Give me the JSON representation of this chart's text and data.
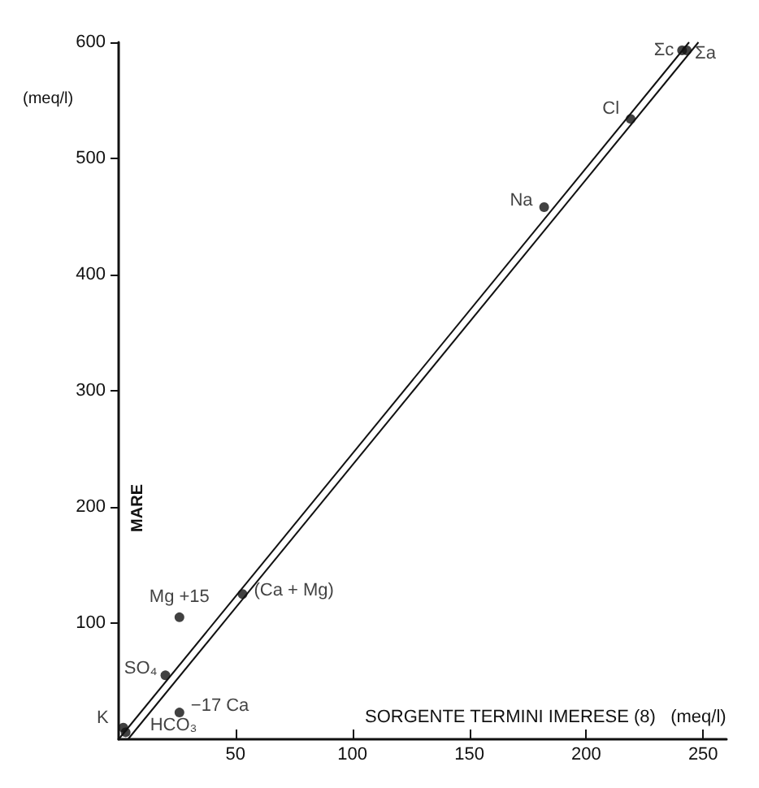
{
  "chart_data": {
    "type": "scatter",
    "xlabel": "SORGENTE TERMINI IMERESE (8)   (meq/l)",
    "ylabel": "MARE",
    "xlim": [
      0,
      260
    ],
    "ylim": [
      0,
      600
    ],
    "xticks": [
      50,
      100,
      150,
      200,
      250
    ],
    "yticks": [
      100,
      200,
      300,
      400,
      500,
      600
    ],
    "grid": false,
    "series": [
      {
        "marker": "circle",
        "color": "#111111",
        "x": [
          241,
          243,
          219,
          182,
          53,
          26,
          20,
          26,
          2,
          3
        ],
        "values": [
          593,
          593,
          534,
          458,
          125,
          105,
          55,
          23,
          10,
          6
        ]
      },
      {
        "type": "line",
        "marker": "none",
        "color": "#111111",
        "x": [
          0,
          244
        ],
        "values": [
          0,
          600
        ]
      },
      {
        "type": "line",
        "marker": "none",
        "color": "#111111",
        "x": [
          4,
          248
        ],
        "values": [
          0,
          600
        ]
      }
    ],
    "annotations": [
      "(meq/l)",
      {
        "text": "Σc",
        "x": 241,
        "y": 593
      },
      {
        "text": "Σa",
        "x": 243,
        "y": 593
      },
      {
        "text": "Cl",
        "x": 219,
        "y": 534
      },
      {
        "text": "Na",
        "x": 182,
        "y": 458
      },
      {
        "text": "(Ca + Mg)",
        "x": 53,
        "y": 125
      },
      {
        "text": "Mg +15",
        "x": 26,
        "y": 105
      },
      {
        "text": "SO₄",
        "x": 20,
        "y": 55
      },
      {
        "text": "−17 Ca",
        "x": 26,
        "y": 23
      },
      {
        "text": "K",
        "x": 2,
        "y": 10
      },
      {
        "text": "HCO₃",
        "x": 3,
        "y": 6
      }
    ]
  }
}
